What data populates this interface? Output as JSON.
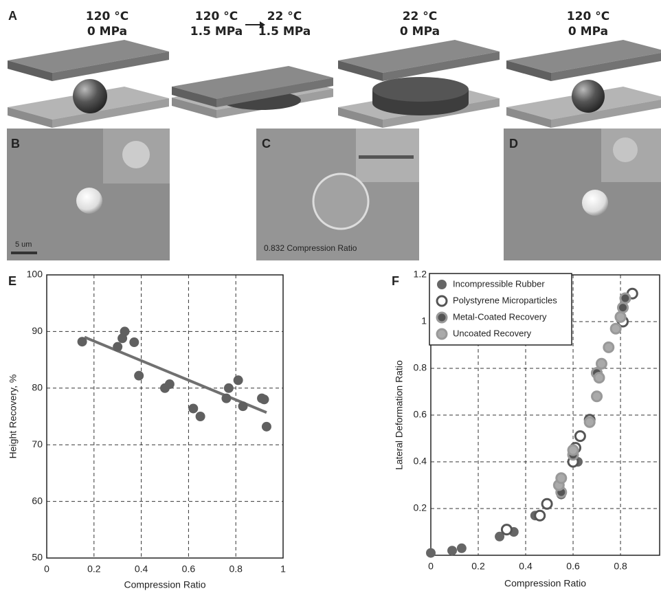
{
  "panel_a": {
    "label": "A",
    "stages": [
      {
        "temperature": "120 °C",
        "pressure": "0 MPa"
      },
      {
        "temperature": "120 °C",
        "pressure": "1.5 MPa",
        "to_temperature": "22 °C",
        "to_pressure": "1.5 MPa"
      },
      {
        "temperature": "22 °C",
        "pressure": "0 MPa"
      },
      {
        "temperature": "120 °C",
        "pressure": "0 MPa"
      }
    ]
  },
  "micrographs": [
    {
      "label": "B",
      "scale_bar": "5 um"
    },
    {
      "label": "C",
      "caption": "0.832 Compression Ratio"
    },
    {
      "label": "D"
    }
  ],
  "chart_data": [
    {
      "type": "scatter",
      "panel": "E",
      "x_label": "Compression Ratio",
      "y_label": "Height Recovery, %",
      "x": [
        0.15,
        0.3,
        0.32,
        0.33,
        0.37,
        0.39,
        0.5,
        0.52,
        0.62,
        0.65,
        0.76,
        0.77,
        0.81,
        0.83,
        0.91,
        0.92,
        0.93
      ],
      "values": [
        88.2,
        87.3,
        88.8,
        90,
        88.1,
        82.2,
        80,
        80.7,
        76.4,
        75,
        78.2,
        80,
        81.4,
        76.8,
        78.2,
        78,
        73.2
      ],
      "color": "#606060",
      "fit": {
        "x": [
          0.16,
          0.93
        ],
        "y": [
          89,
          75.7
        ],
        "color": "#707070"
      },
      "xlim": [
        0,
        1
      ],
      "xticks": [
        0,
        0.2,
        0.4,
        0.6,
        0.8,
        1
      ],
      "ylim": [
        50,
        100
      ],
      "yticks": [
        50,
        60,
        70,
        80,
        90,
        100
      ],
      "grid": true
    },
    {
      "type": "scatter",
      "panel": "F",
      "x_label": "Compression Ratio",
      "y_label": "Lateral Deformation Ratio",
      "legend": "upper left",
      "series": [
        {
          "name": "Incompressible Rubber",
          "color": "#666666",
          "edgecolor": "#666666",
          "x": [
            0,
            0.09,
            0.13,
            0.29,
            0.35,
            0.44,
            0.55,
            0.62
          ],
          "values": [
            0.01,
            0.02,
            0.03,
            0.08,
            0.1,
            0.17,
            0.26,
            0.4
          ]
        },
        {
          "name": "Polystyrene Microparticles",
          "color": "#ffffff",
          "edgecolor": "#555555",
          "x": [
            0.32,
            0.46,
            0.49,
            0.6,
            0.61,
            0.63,
            0.67,
            0.7,
            0.81,
            0.85
          ],
          "values": [
            0.11,
            0.17,
            0.22,
            0.4,
            0.46,
            0.51,
            0.58,
            0.78,
            1.0,
            1.12
          ]
        },
        {
          "name": "Metal-Coated Recovery",
          "color": "#555555",
          "edgecolor": "#999999",
          "x": [
            0.55,
            0.6,
            0.7,
            0.8,
            0.81,
            0.82
          ],
          "values": [
            0.27,
            0.43,
            0.78,
            1.02,
            1.06,
            1.1
          ]
        },
        {
          "name": "Uncoated Recovery",
          "color": "#aaaaaa",
          "edgecolor": "#999999",
          "x": [
            0.54,
            0.55,
            0.6,
            0.67,
            0.7,
            0.71,
            0.72,
            0.75,
            0.78,
            0.8
          ],
          "values": [
            0.3,
            0.33,
            0.45,
            0.57,
            0.68,
            0.76,
            0.82,
            0.89,
            0.97,
            1.02
          ]
        }
      ],
      "xlim": [
        0,
        0.965
      ],
      "xticks": [
        0,
        0.2,
        0.4,
        0.6,
        0.8
      ],
      "ylim": [
        0,
        1.2
      ],
      "yticks": [
        0.2,
        0.4,
        0.6,
        0.8,
        1,
        1.2
      ],
      "grid": true
    }
  ]
}
